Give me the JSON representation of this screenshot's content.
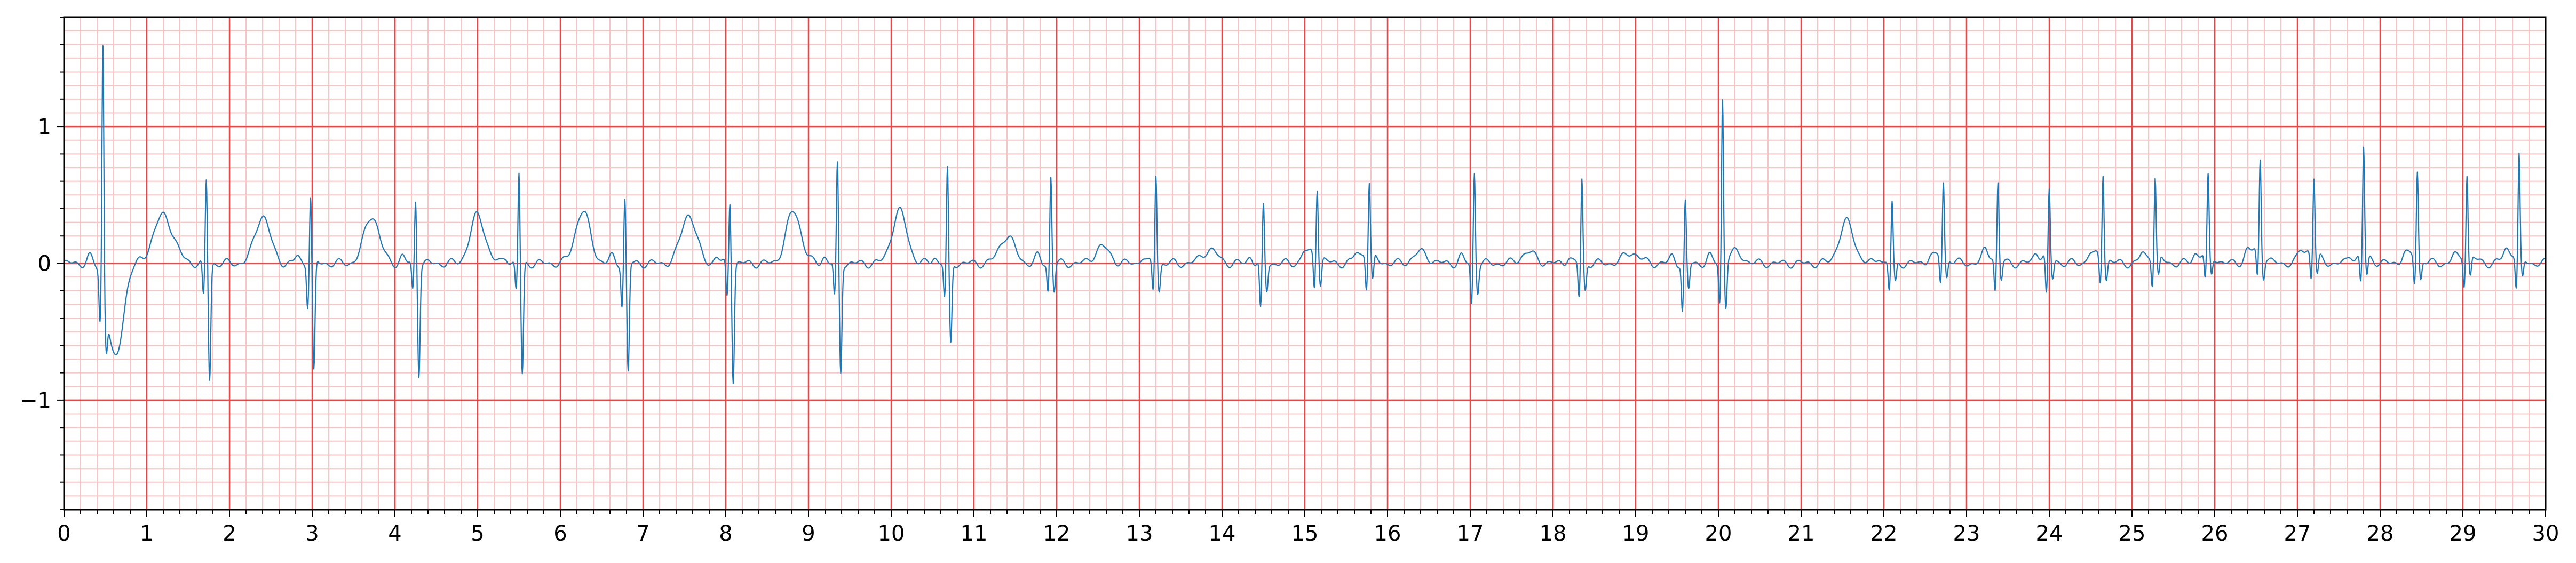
{
  "chart_data": {
    "type": "line",
    "title": "",
    "xlabel": "",
    "ylabel": "",
    "xlim": [
      0,
      30
    ],
    "ylim": [
      -1.8,
      1.8
    ],
    "x_ticks": [
      0,
      1,
      2,
      3,
      4,
      5,
      6,
      7,
      8,
      9,
      10,
      11,
      12,
      13,
      14,
      15,
      16,
      17,
      18,
      19,
      20,
      21,
      22,
      23,
      24,
      25,
      26,
      27,
      28,
      29,
      30
    ],
    "x_tick_labels": [
      "0",
      "1",
      "2",
      "3",
      "4",
      "5",
      "6",
      "7",
      "8",
      "9",
      "10",
      "11",
      "12",
      "13",
      "14",
      "15",
      "16",
      "17",
      "18",
      "19",
      "20",
      "21",
      "22",
      "23",
      "24",
      "25",
      "26",
      "27",
      "28",
      "29",
      "30"
    ],
    "y_ticks": [
      -1,
      0,
      1
    ],
    "y_tick_labels": [
      "−1",
      "0",
      "1"
    ],
    "grid": {
      "major": true,
      "minor": true,
      "major_step_x": 1,
      "minor_step_x": 0.2,
      "major_step_y": 1,
      "minor_step_y": 0.1,
      "major_color": "#ef4444",
      "minor_color": "#fbc4c4"
    },
    "series": [
      {
        "name": "",
        "color": "#1f77b4",
        "peaks": [
          {
            "t": 0.47,
            "r": 1.78,
            "q": -0.35,
            "s": -0.3,
            "p": 0.05,
            "tw": -0.7,
            "tt": 0.62,
            "tw2": 0.35,
            "tt2": 1.2
          },
          {
            "t": 1.72,
            "r": 0.62,
            "q": -0.25,
            "s": -0.85,
            "p": 0.0,
            "tw": 0.35,
            "tt": 2.4,
            "tw2": 0,
            "tt2": 0
          },
          {
            "t": 2.98,
            "r": 0.5,
            "q": -0.3,
            "s": -0.8,
            "p": 0.05,
            "tw": 0.35,
            "tt": 3.72,
            "tw2": 0,
            "tt2": 0
          },
          {
            "t": 4.25,
            "r": 0.47,
            "q": -0.2,
            "s": -0.8,
            "p": 0.05,
            "tw": 0.35,
            "tt": 5.0,
            "tw2": 0,
            "tt2": 0
          },
          {
            "t": 5.5,
            "r": 0.67,
            "q": -0.2,
            "s": -0.82,
            "p": 0.05,
            "tw": 0.38,
            "tt": 6.27,
            "tw2": 0,
            "tt2": 0
          },
          {
            "t": 6.78,
            "r": 0.48,
            "q": -0.3,
            "s": -0.8,
            "p": 0.05,
            "tw": 0.36,
            "tt": 7.55,
            "tw2": 0,
            "tt2": 0
          },
          {
            "t": 8.05,
            "r": 0.47,
            "q": -0.25,
            "s": -0.85,
            "p": 0.05,
            "tw": 0.38,
            "tt": 8.82,
            "tw2": 0,
            "tt2": 0
          },
          {
            "t": 9.35,
            "r": 0.73,
            "q": -0.25,
            "s": -0.8,
            "p": 0.05,
            "tw": 0.38,
            "tt": 10.1,
            "tw2": 0,
            "tt2": 0
          },
          {
            "t": 10.68,
            "r": 0.69,
            "q": -0.25,
            "s": -0.6,
            "p": 0.05,
            "tw": 0.2,
            "tt": 11.4,
            "tw2": 0,
            "tt2": 0
          },
          {
            "t": 11.93,
            "r": 0.64,
            "q": -0.2,
            "s": -0.2,
            "p": 0.05,
            "tw": 0.12,
            "tt": 12.55,
            "tw2": 0,
            "tt2": 0
          },
          {
            "t": 13.2,
            "r": 0.66,
            "q": -0.2,
            "s": -0.2,
            "p": 0.05,
            "tw": 0.1,
            "tt": 13.85,
            "tw2": 0,
            "tt2": 0
          },
          {
            "t": 14.5,
            "r": 0.42,
            "q": -0.35,
            "s": -0.2,
            "p": 0.05,
            "tw": 0.08,
            "tt": 15.1,
            "tw2": 0,
            "tt2": 0
          },
          {
            "t": 15.15,
            "r": 0.5,
            "q": -0.25,
            "s": -0.2,
            "p": 0.05,
            "tw": 0.08,
            "tt": 15.75,
            "tw2": 0,
            "tt2": 0
          },
          {
            "t": 15.78,
            "r": 0.52,
            "q": -0.25,
            "s": -0.2,
            "p": 0.05,
            "tw": 0.08,
            "tt": 16.4,
            "tw2": 0,
            "tt2": 0
          },
          {
            "t": 17.05,
            "r": 0.67,
            "q": -0.3,
            "s": -0.2,
            "p": 0.05,
            "tw": 0.08,
            "tt": 17.7,
            "tw2": 0,
            "tt2": 0
          },
          {
            "t": 18.35,
            "r": 0.62,
            "q": -0.25,
            "s": -0.2,
            "p": 0.05,
            "tw": 0.08,
            "tt": 18.95,
            "tw2": 0,
            "tt2": 0
          },
          {
            "t": 19.6,
            "r": 0.45,
            "q": -0.35,
            "s": -0.2,
            "p": 0.05,
            "tw": 0.08,
            "tt": 20.2,
            "tw2": 0,
            "tt2": 0
          },
          {
            "t": 20.05,
            "r": 1.19,
            "q": -0.3,
            "s": -0.35,
            "p": 0.05,
            "tw": 0.3,
            "tt": 21.55,
            "tw2": 0,
            "tt2": 0
          },
          {
            "t": 22.1,
            "r": 0.45,
            "q": -0.2,
            "s": -0.15,
            "p": 0.05,
            "tw": 0.06,
            "tt": 22.7,
            "tw2": 0,
            "tt2": 0
          },
          {
            "t": 22.72,
            "r": 0.54,
            "q": -0.2,
            "s": -0.15,
            "p": 0.05,
            "tw": 0.06,
            "tt": 23.3,
            "tw2": 0,
            "tt2": 0
          },
          {
            "t": 23.38,
            "r": 0.55,
            "q": -0.25,
            "s": -0.15,
            "p": 0.05,
            "tw": 0.06,
            "tt": 23.95,
            "tw2": 0,
            "tt2": 0
          },
          {
            "t": 24.0,
            "r": 0.48,
            "q": -0.3,
            "s": -0.15,
            "p": 0.05,
            "tw": 0.06,
            "tt": 24.6,
            "tw2": 0,
            "tt2": 0
          },
          {
            "t": 24.65,
            "r": 0.62,
            "q": -0.2,
            "s": -0.15,
            "p": 0.05,
            "tw": 0.06,
            "tt": 25.25,
            "tw2": 0,
            "tt2": 0
          },
          {
            "t": 25.28,
            "r": 0.58,
            "q": -0.2,
            "s": -0.15,
            "p": 0.05,
            "tw": 0.08,
            "tt": 25.9,
            "tw2": 0,
            "tt2": 0
          },
          {
            "t": 25.92,
            "r": 0.55,
            "q": -0.2,
            "s": -0.15,
            "p": 0.05,
            "tw": 0.1,
            "tt": 26.5,
            "tw2": 0,
            "tt2": 0
          },
          {
            "t": 26.55,
            "r": 0.68,
            "q": -0.2,
            "s": -0.15,
            "p": 0.05,
            "tw": 0.1,
            "tt": 27.15,
            "tw2": 0,
            "tt2": 0
          },
          {
            "t": 27.2,
            "r": 0.55,
            "q": -0.2,
            "s": -0.15,
            "p": 0.05,
            "tw": 0.06,
            "tt": 27.8,
            "tw2": 0,
            "tt2": 0
          },
          {
            "t": 27.8,
            "r": 0.79,
            "q": -0.2,
            "s": -0.15,
            "p": 0.05,
            "tw": 0.06,
            "tt": 28.4,
            "tw2": 0,
            "tt2": 0
          },
          {
            "t": 28.45,
            "r": 0.63,
            "q": -0.2,
            "s": -0.15,
            "p": 0.05,
            "tw": 0.06,
            "tt": 29.05,
            "tw2": 0,
            "tt2": 0
          },
          {
            "t": 29.05,
            "r": 0.6,
            "q": -0.2,
            "s": -0.15,
            "p": 0.05,
            "tw": 0.08,
            "tt": 29.6,
            "tw2": 0,
            "tt2": 0
          },
          {
            "t": 29.68,
            "r": 0.73,
            "q": -0.25,
            "s": -0.15,
            "p": 0.05,
            "tw": 0.06,
            "tt": 30.3,
            "tw2": 0,
            "tt2": 0
          }
        ]
      }
    ]
  }
}
